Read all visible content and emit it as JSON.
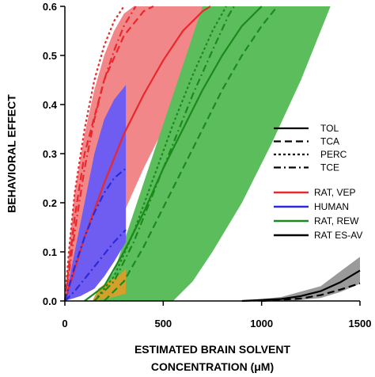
{
  "chart_data": {
    "type": "line",
    "title": "",
    "xlabel_line1": "ESTIMATED BRAIN SOLVENT",
    "xlabel_line2": "CONCENTRATION (μM)",
    "ylabel": "BEHAVIORAL EFFECT",
    "xlim": [
      0,
      1500
    ],
    "ylim": [
      0,
      0.6
    ],
    "x_ticks": [
      0,
      500,
      1000,
      1500
    ],
    "y_ticks": [
      0.0,
      0.1,
      0.2,
      0.3,
      0.4,
      0.5,
      0.6
    ],
    "grid": false,
    "legend_position": "right",
    "legend_linestyles": [
      {
        "label": "TOL",
        "style": "solid"
      },
      {
        "label": "TCA",
        "style": "dashed"
      },
      {
        "label": "PERC",
        "style": "dotted"
      },
      {
        "label": "TCE",
        "style": "dashdot"
      }
    ],
    "legend_groups": [
      {
        "label": "RAT, VEP",
        "color": "#e8282b"
      },
      {
        "label": "HUMAN",
        "color": "#2a2ad8"
      },
      {
        "label": "RAT, REW",
        "color": "#1a8a1a"
      },
      {
        "label": "RAT ES-AV",
        "color": "#000000"
      }
    ],
    "bands": [
      {
        "group": "RAT, VEP",
        "color": "#f2878a",
        "upper": [
          [
            0,
            0
          ],
          [
            20,
            0.1
          ],
          [
            50,
            0.22
          ],
          [
            100,
            0.34
          ],
          [
            150,
            0.43
          ],
          [
            200,
            0.5
          ],
          [
            250,
            0.55
          ],
          [
            300,
            0.585
          ],
          [
            350,
            0.6
          ]
        ],
        "lower": [
          [
            0,
            0
          ],
          [
            100,
            0.04
          ],
          [
            200,
            0.1
          ],
          [
            300,
            0.18
          ],
          [
            400,
            0.27
          ],
          [
            500,
            0.35
          ],
          [
            600,
            0.43
          ],
          [
            650,
            0.48
          ],
          [
            700,
            0.53
          ],
          [
            750,
            0.58
          ],
          [
            780,
            0.6
          ]
        ]
      },
      {
        "group": "RAT, REW",
        "color": "#5cbd5c",
        "upper": [
          [
            150,
            0
          ],
          [
            250,
            0.06
          ],
          [
            350,
            0.18
          ],
          [
            450,
            0.3
          ],
          [
            550,
            0.42
          ],
          [
            650,
            0.54
          ],
          [
            700,
            0.6
          ]
        ],
        "lower": [
          [
            550,
            0
          ],
          [
            650,
            0.04
          ],
          [
            750,
            0.1
          ],
          [
            900,
            0.2
          ],
          [
            1050,
            0.32
          ],
          [
            1200,
            0.45
          ],
          [
            1300,
            0.55
          ],
          [
            1350,
            0.6
          ]
        ]
      },
      {
        "group": "RAT ES-AV",
        "color": "#9a9a9a",
        "upper": [
          [
            900,
            0
          ],
          [
            1100,
            0.008
          ],
          [
            1300,
            0.03
          ],
          [
            1400,
            0.06
          ],
          [
            1500,
            0.09
          ]
        ],
        "lower": [
          [
            1150,
            0
          ],
          [
            1300,
            0.006
          ],
          [
            1400,
            0.018
          ],
          [
            1500,
            0.035
          ]
        ]
      },
      {
        "group": "HUMAN",
        "color": "#6f5cf0",
        "upper": [
          [
            0,
            0
          ],
          [
            50,
            0.1
          ],
          [
            100,
            0.2
          ],
          [
            150,
            0.3
          ],
          [
            200,
            0.37
          ],
          [
            250,
            0.41
          ],
          [
            310,
            0.44
          ]
        ],
        "lower": [
          [
            0,
            0
          ],
          [
            80,
            0.01
          ],
          [
            150,
            0.025
          ],
          [
            200,
            0.05
          ],
          [
            250,
            0.08
          ],
          [
            310,
            0.12
          ]
        ]
      },
      {
        "group": "overlap",
        "color": "#d4a02a",
        "upper": [
          [
            140,
            0
          ],
          [
            170,
            0.025
          ],
          [
            220,
            0.04
          ],
          [
            270,
            0.05
          ],
          [
            310,
            0.065
          ]
        ],
        "lower": [
          [
            140,
            0
          ],
          [
            220,
            0.005
          ],
          [
            310,
            0.015
          ]
        ]
      }
    ],
    "series": [
      {
        "name": "RAT, VEP — TOL",
        "color": "#e8282b",
        "style": "solid",
        "points": [
          [
            0,
            0
          ],
          [
            100,
            0.13
          ],
          [
            200,
            0.24
          ],
          [
            300,
            0.34
          ],
          [
            400,
            0.42
          ],
          [
            500,
            0.49
          ],
          [
            600,
            0.55
          ],
          [
            700,
            0.59
          ],
          [
            740,
            0.6
          ]
        ]
      },
      {
        "name": "RAT, VEP — PERC",
        "color": "#e8282b",
        "style": "dotted",
        "points": [
          [
            0,
            0
          ],
          [
            20,
            0.1
          ],
          [
            50,
            0.22
          ],
          [
            100,
            0.35
          ],
          [
            150,
            0.45
          ],
          [
            200,
            0.52
          ],
          [
            250,
            0.57
          ],
          [
            300,
            0.6
          ]
        ]
      },
      {
        "name": "RAT, VEP — TCE",
        "color": "#e8282b",
        "style": "dashdot",
        "points": [
          [
            0,
            0
          ],
          [
            50,
            0.14
          ],
          [
            100,
            0.27
          ],
          [
            150,
            0.37
          ],
          [
            200,
            0.45
          ],
          [
            250,
            0.51
          ],
          [
            300,
            0.56
          ],
          [
            360,
            0.6
          ]
        ]
      },
      {
        "name": "RAT, VEP — TCA",
        "color": "#e8282b",
        "style": "dashed",
        "points": [
          [
            0,
            0
          ],
          [
            50,
            0.17
          ],
          [
            100,
            0.3
          ],
          [
            200,
            0.45
          ],
          [
            300,
            0.54
          ],
          [
            400,
            0.59
          ],
          [
            450,
            0.6
          ]
        ]
      },
      {
        "name": "HUMAN — TCE",
        "color": "#2a2ad8",
        "style": "dashdot",
        "points": [
          [
            0,
            0
          ],
          [
            50,
            0.07
          ],
          [
            100,
            0.13
          ],
          [
            150,
            0.18
          ],
          [
            200,
            0.22
          ],
          [
            250,
            0.25
          ],
          [
            310,
            0.27
          ]
        ]
      },
      {
        "name": "HUMAN — TCA",
        "color": "#2a2ad8",
        "style": "dashdot",
        "points": [
          [
            0,
            0
          ],
          [
            50,
            0.02
          ],
          [
            100,
            0.045
          ],
          [
            150,
            0.07
          ],
          [
            200,
            0.095
          ],
          [
            250,
            0.12
          ],
          [
            310,
            0.145
          ]
        ]
      },
      {
        "name": "RAT, REW — TOL",
        "color": "#1a8a1a",
        "style": "solid",
        "points": [
          [
            100,
            0
          ],
          [
            200,
            0.03
          ],
          [
            300,
            0.1
          ],
          [
            400,
            0.18
          ],
          [
            500,
            0.27
          ],
          [
            600,
            0.35
          ],
          [
            700,
            0.43
          ],
          [
            800,
            0.5
          ],
          [
            900,
            0.56
          ],
          [
            1000,
            0.6
          ]
        ]
      },
      {
        "name": "RAT, REW — TCA",
        "color": "#1a8a1a",
        "style": "dashed",
        "points": [
          [
            200,
            0
          ],
          [
            300,
            0.04
          ],
          [
            400,
            0.11
          ],
          [
            500,
            0.19
          ],
          [
            600,
            0.27
          ],
          [
            700,
            0.35
          ],
          [
            800,
            0.43
          ],
          [
            900,
            0.5
          ],
          [
            1000,
            0.56
          ],
          [
            1080,
            0.6
          ]
        ]
      },
      {
        "name": "RAT, REW — PERC",
        "color": "#1a8a1a",
        "style": "dotted",
        "points": [
          [
            150,
            0
          ],
          [
            250,
            0.05
          ],
          [
            350,
            0.14
          ],
          [
            450,
            0.25
          ],
          [
            550,
            0.36
          ],
          [
            650,
            0.46
          ],
          [
            750,
            0.55
          ],
          [
            820,
            0.6
          ]
        ]
      },
      {
        "name": "RAT, REW — TCE",
        "color": "#1a8a1a",
        "style": "dashdot",
        "points": [
          [
            150,
            0
          ],
          [
            250,
            0.04
          ],
          [
            350,
            0.12
          ],
          [
            450,
            0.22
          ],
          [
            550,
            0.32
          ],
          [
            650,
            0.42
          ],
          [
            750,
            0.51
          ],
          [
            830,
            0.58
          ],
          [
            860,
            0.6
          ]
        ]
      },
      {
        "name": "RAT ES-AV — TOL",
        "color": "#000000",
        "style": "solid",
        "points": [
          [
            900,
            0
          ],
          [
            1100,
            0.004
          ],
          [
            1200,
            0.01
          ],
          [
            1300,
            0.02
          ],
          [
            1400,
            0.038
          ],
          [
            1500,
            0.062
          ]
        ]
      },
      {
        "name": "RAT ES-AV — TCA",
        "color": "#000000",
        "style": "dashed",
        "points": [
          [
            1000,
            0
          ],
          [
            1200,
            0.005
          ],
          [
            1300,
            0.012
          ],
          [
            1400,
            0.023
          ],
          [
            1500,
            0.036
          ]
        ]
      }
    ]
  }
}
